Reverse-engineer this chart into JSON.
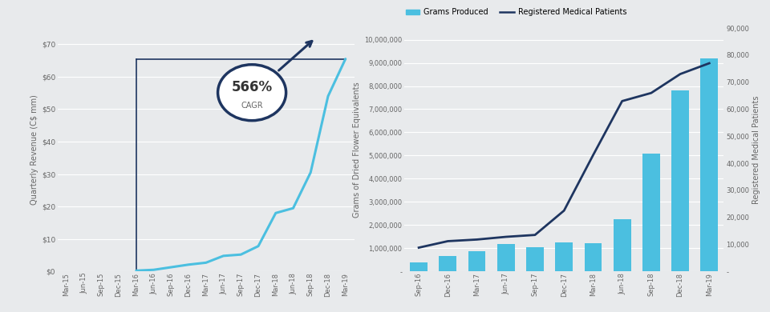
{
  "left_chart": {
    "x_labels": [
      "Mar-15",
      "Jun-15",
      "Sep-15",
      "Dec-15",
      "Mar-16",
      "Jun-16",
      "Sep-16",
      "Dec-16",
      "Mar-17",
      "Jun-17",
      "Sep-17",
      "Dec-17",
      "Mar-18",
      "Jun-18",
      "Sep-18",
      "Dec-18",
      "Mar-19"
    ],
    "ylabel": "Quarterly Revenue (C$ mm)",
    "yticks": [
      0,
      10,
      20,
      30,
      40,
      50,
      60,
      70
    ],
    "ytick_labels": [
      "$0",
      "$10",
      "$20",
      "$30",
      "$40",
      "$50",
      "$60",
      "$70"
    ],
    "line_color": "#4bbfe0",
    "rect_color": "#1e3560",
    "background_color": "#e8eaec",
    "grid_color": "#ffffff",
    "cagr_text": "566%",
    "cagr_subtext": "CAGR",
    "rev_x": [
      4,
      5,
      6,
      7,
      8,
      9,
      10,
      11,
      12,
      13,
      14,
      15,
      16
    ],
    "rev_y": [
      0.25,
      0.5,
      1.3,
      2.1,
      2.7,
      4.8,
      5.2,
      7.8,
      18.0,
      19.5,
      30.5,
      54.0,
      65.5
    ],
    "rect_x_start": 4,
    "rect_x_end_top": 16,
    "rect_height": 65.5,
    "ylim": [
      0,
      75
    ],
    "xlim_min": -0.5,
    "xlim_max": 16.5
  },
  "right_chart": {
    "x_labels": [
      "Sep-16",
      "Dec-16",
      "Mar-17",
      "Jun-17",
      "Sep-17",
      "Dec-17",
      "Mar-18",
      "Jun-18",
      "Sep-18",
      "Dec-18",
      "Mar-19"
    ],
    "bar_values": [
      380000,
      670000,
      880000,
      1200000,
      1050000,
      1260000,
      1220000,
      2250000,
      5100000,
      7800000,
      9200000
    ],
    "line_values": [
      8800,
      11200,
      11800,
      12800,
      13500,
      22500,
      43000,
      63000,
      66000,
      73000,
      77000
    ],
    "ylabel_left": "Grams of Dried Flower Equivalents",
    "ylabel_right": "Registered Medical Patients",
    "bar_color": "#4bbfe0",
    "line_color": "#1e3560",
    "legend_bar": "Grams Produced",
    "legend_line": "Registered Medical Patients",
    "left_yticks": [
      0,
      1000000,
      2000000,
      3000000,
      4000000,
      5000000,
      6000000,
      7000000,
      8000000,
      9000000,
      10000000
    ],
    "left_ytick_labels": [
      "-",
      "1,000,000",
      "2,000,000",
      "3,000,000",
      "4,000,000",
      "5,000,000",
      "6,000,000",
      "7,000,000",
      "8,000,000",
      "9,000,000",
      "10,000,000"
    ],
    "right_yticks": [
      0,
      10000,
      20000,
      30000,
      40000,
      50000,
      60000,
      70000,
      80000,
      90000
    ],
    "right_ytick_labels": [
      "-",
      "10,000",
      "20,000",
      "30,000",
      "40,000",
      "50,000",
      "60,000",
      "70,000",
      "80,000",
      "90,000"
    ],
    "background_color": "#e8eaec",
    "grid_color": "#ffffff",
    "ylim_left": [
      0,
      10500000
    ],
    "ylim_right": [
      0,
      90000
    ]
  }
}
